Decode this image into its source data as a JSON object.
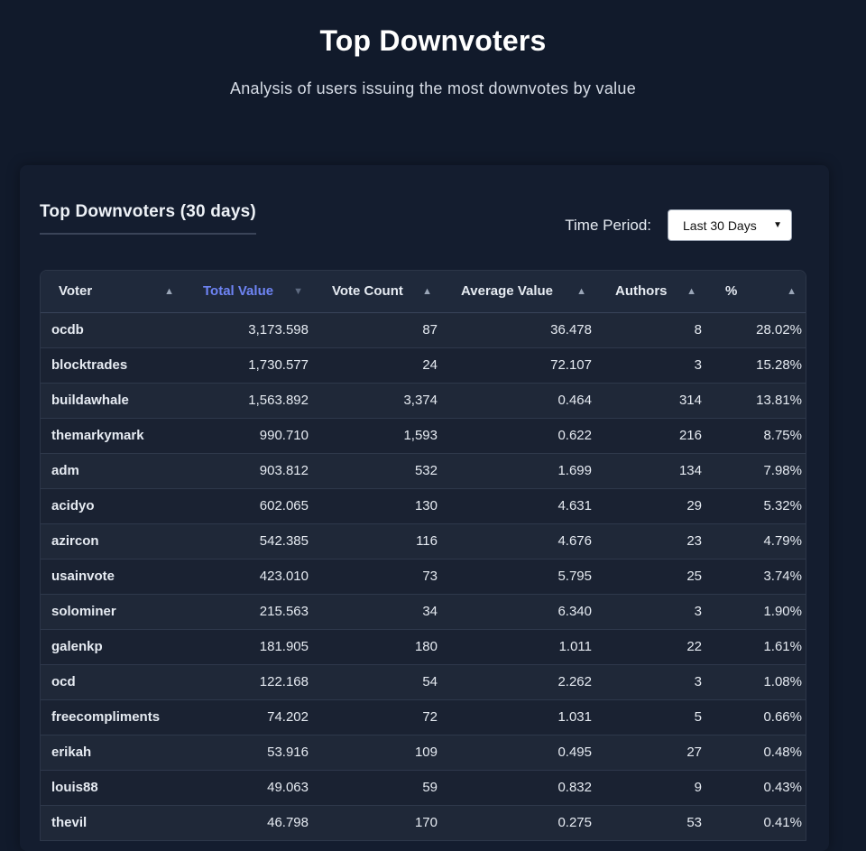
{
  "header": {
    "title": "Top Downvoters",
    "subtitle": "Analysis of users issuing the most downvotes by value"
  },
  "card": {
    "title": "Top Downvoters (30 days)",
    "period_label": "Time Period:",
    "period_selected": "Last 30 Days"
  },
  "table": {
    "columns": [
      {
        "label": "Voter",
        "sort_icon": "sort-asc-icon"
      },
      {
        "label": "Total Value",
        "sort_icon": "sort-desc-icon",
        "active": true
      },
      {
        "label": "Vote Count",
        "sort_icon": "sort-asc-icon"
      },
      {
        "label": "Average Value",
        "sort_icon": "sort-asc-icon"
      },
      {
        "label": "Authors",
        "sort_icon": "sort-asc-icon"
      },
      {
        "label": "%",
        "sort_icon": "sort-asc-icon"
      }
    ],
    "rows": [
      {
        "voter": "ocdb",
        "total": "3,173.598",
        "count": "87",
        "avg": "36.478",
        "authors": "8",
        "pct": "28.02%"
      },
      {
        "voter": "blocktrades",
        "total": "1,730.577",
        "count": "24",
        "avg": "72.107",
        "authors": "3",
        "pct": "15.28%"
      },
      {
        "voter": "buildawhale",
        "total": "1,563.892",
        "count": "3,374",
        "avg": "0.464",
        "authors": "314",
        "pct": "13.81%"
      },
      {
        "voter": "themarkymark",
        "total": "990.710",
        "count": "1,593",
        "avg": "0.622",
        "authors": "216",
        "pct": "8.75%"
      },
      {
        "voter": "adm",
        "total": "903.812",
        "count": "532",
        "avg": "1.699",
        "authors": "134",
        "pct": "7.98%"
      },
      {
        "voter": "acidyo",
        "total": "602.065",
        "count": "130",
        "avg": "4.631",
        "authors": "29",
        "pct": "5.32%"
      },
      {
        "voter": "azircon",
        "total": "542.385",
        "count": "116",
        "avg": "4.676",
        "authors": "23",
        "pct": "4.79%"
      },
      {
        "voter": "usainvote",
        "total": "423.010",
        "count": "73",
        "avg": "5.795",
        "authors": "25",
        "pct": "3.74%"
      },
      {
        "voter": "solominer",
        "total": "215.563",
        "count": "34",
        "avg": "6.340",
        "authors": "3",
        "pct": "1.90%"
      },
      {
        "voter": "galenkp",
        "total": "181.905",
        "count": "180",
        "avg": "1.011",
        "authors": "22",
        "pct": "1.61%"
      },
      {
        "voter": "ocd",
        "total": "122.168",
        "count": "54",
        "avg": "2.262",
        "authors": "3",
        "pct": "1.08%"
      },
      {
        "voter": "freecompliments",
        "total": "74.202",
        "count": "72",
        "avg": "1.031",
        "authors": "5",
        "pct": "0.66%"
      },
      {
        "voter": "erikah",
        "total": "53.916",
        "count": "109",
        "avg": "0.495",
        "authors": "27",
        "pct": "0.48%"
      },
      {
        "voter": "louis88",
        "total": "49.063",
        "count": "59",
        "avg": "0.832",
        "authors": "9",
        "pct": "0.43%"
      },
      {
        "voter": "thevil",
        "total": "46.798",
        "count": "170",
        "avg": "0.275",
        "authors": "53",
        "pct": "0.41%"
      }
    ]
  },
  "colors": {
    "background": "#111a2b",
    "active_header": "#6e84f4"
  }
}
